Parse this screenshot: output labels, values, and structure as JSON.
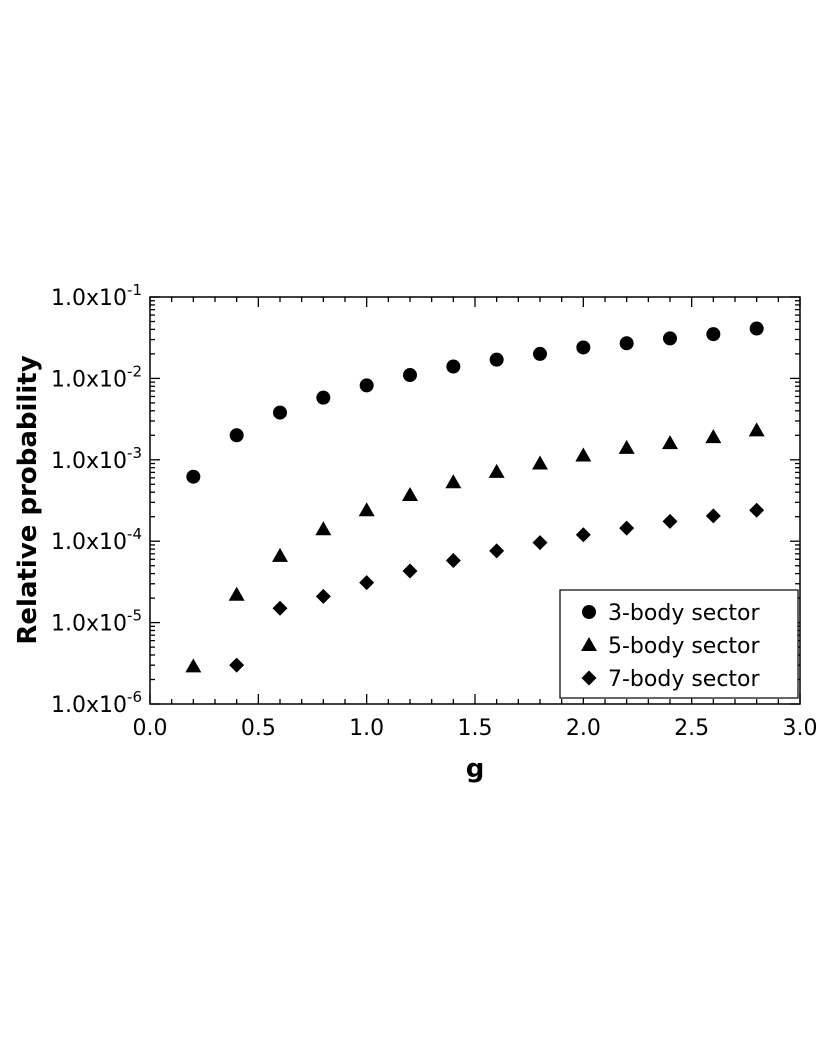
{
  "chart_data": {
    "type": "scatter",
    "xlabel": "g",
    "ylabel": "Relative probability",
    "xlim": [
      0.0,
      3.0
    ],
    "ylim": [
      1e-06,
      0.1
    ],
    "yscale": "log",
    "x_ticks": [
      0.0,
      0.5,
      1.0,
      1.5,
      2.0,
      2.5,
      3.0
    ],
    "x_tick_labels": [
      "0.0",
      "0.5",
      "1.0",
      "1.5",
      "2.0",
      "2.5",
      "3.0"
    ],
    "y_ticks": [
      0.1,
      0.01,
      0.001,
      0.0001,
      1e-05,
      1e-06
    ],
    "y_tick_labels": [
      {
        "mantissa": "1.0x10",
        "exponent": "-1"
      },
      {
        "mantissa": "1.0x10",
        "exponent": "-2"
      },
      {
        "mantissa": "1.0x10",
        "exponent": "-3"
      },
      {
        "mantissa": "1.0x10",
        "exponent": "-4"
      },
      {
        "mantissa": "1.0x10",
        "exponent": "-5"
      },
      {
        "mantissa": "1.0x10",
        "exponent": "-6"
      }
    ],
    "grid": false,
    "legend_position": "bottom-right",
    "series": [
      {
        "name": "3-body sector",
        "marker": "circle",
        "color": "#000000",
        "x": [
          0.2,
          0.4,
          0.6,
          0.8,
          1.0,
          1.2,
          1.4,
          1.6,
          1.8,
          2.0,
          2.2,
          2.4,
          2.6,
          2.8
        ],
        "y": [
          0.00062,
          0.002,
          0.0038,
          0.0058,
          0.0082,
          0.011,
          0.014,
          0.017,
          0.02,
          0.024,
          0.027,
          0.031,
          0.035,
          0.041
        ]
      },
      {
        "name": "5-body sector",
        "marker": "triangle",
        "color": "#000000",
        "x": [
          0.2,
          0.4,
          0.6,
          0.8,
          1.0,
          1.2,
          1.4,
          1.6,
          1.8,
          2.0,
          2.2,
          2.4,
          2.6,
          2.8
        ],
        "y": [
          2.9e-06,
          2.2e-05,
          6.6e-05,
          0.00014,
          0.00024,
          0.00037,
          0.00053,
          0.00071,
          0.0009,
          0.00113,
          0.0014,
          0.0016,
          0.0019,
          0.0023
        ]
      },
      {
        "name": "7-body sector",
        "marker": "diamond",
        "color": "#000000",
        "x": [
          0.4,
          0.6,
          0.8,
          1.0,
          1.2,
          1.4,
          1.6,
          1.8,
          2.0,
          2.2,
          2.4,
          2.6,
          2.8
        ],
        "y": [
          3e-06,
          1.5e-05,
          2.1e-05,
          3.1e-05,
          4.3e-05,
          5.8e-05,
          7.6e-05,
          9.6e-05,
          0.00012,
          0.000145,
          0.000175,
          0.000205,
          0.00024
        ]
      }
    ]
  }
}
